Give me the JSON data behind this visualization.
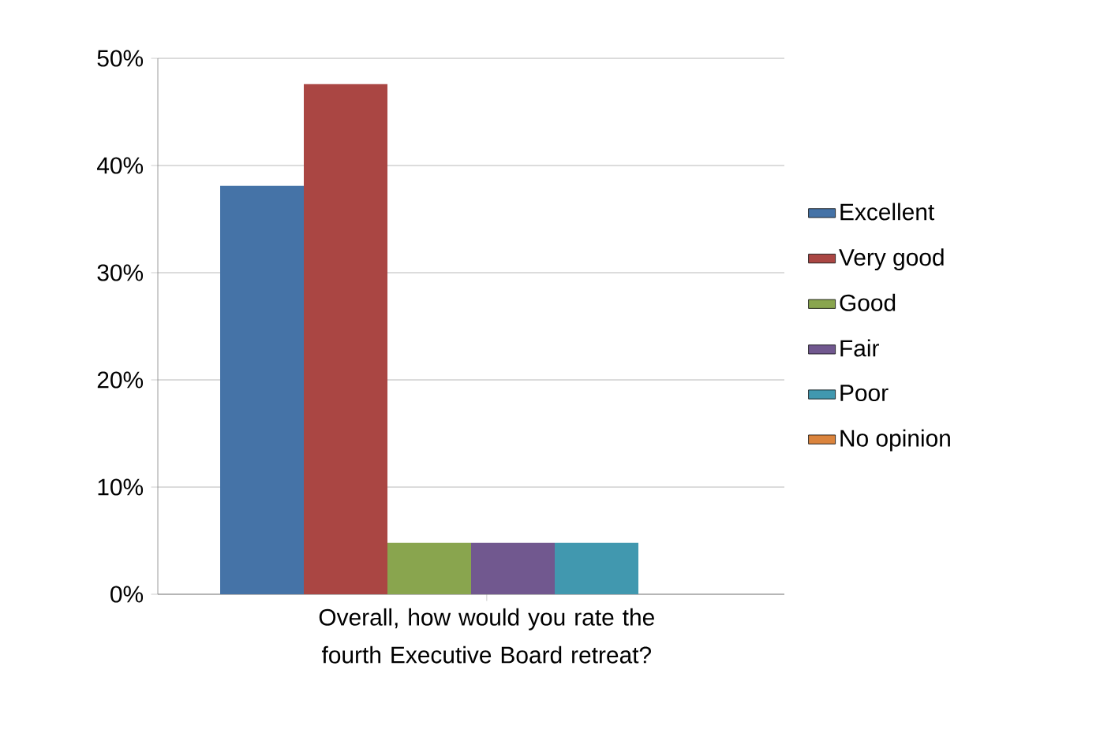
{
  "chart_data": {
    "type": "bar",
    "categories": [
      "Overall, how would you rate the fourth Executive Board retreat?"
    ],
    "series": [
      {
        "name": "Excellent",
        "color": "#4573a7",
        "values": [
          38.1
        ]
      },
      {
        "name": "Very good",
        "color": "#aa4643",
        "values": [
          47.6
        ]
      },
      {
        "name": "Good",
        "color": "#89a54e",
        "values": [
          4.8
        ]
      },
      {
        "name": "Fair",
        "color": "#71588f",
        "values": [
          4.8
        ]
      },
      {
        "name": "Poor",
        "color": "#4198af",
        "values": [
          4.8
        ]
      },
      {
        "name": "No opinion",
        "color": "#db843d",
        "values": [
          0
        ]
      }
    ],
    "ylim": [
      0,
      50
    ],
    "yticks": [
      {
        "value": 0,
        "label": "0%"
      },
      {
        "value": 10,
        "label": "10%"
      },
      {
        "value": 20,
        "label": "20%"
      },
      {
        "value": 30,
        "label": "30%"
      },
      {
        "value": 40,
        "label": "40%"
      },
      {
        "value": 50,
        "label": "50%"
      }
    ],
    "grid": "y",
    "legend": "right"
  }
}
